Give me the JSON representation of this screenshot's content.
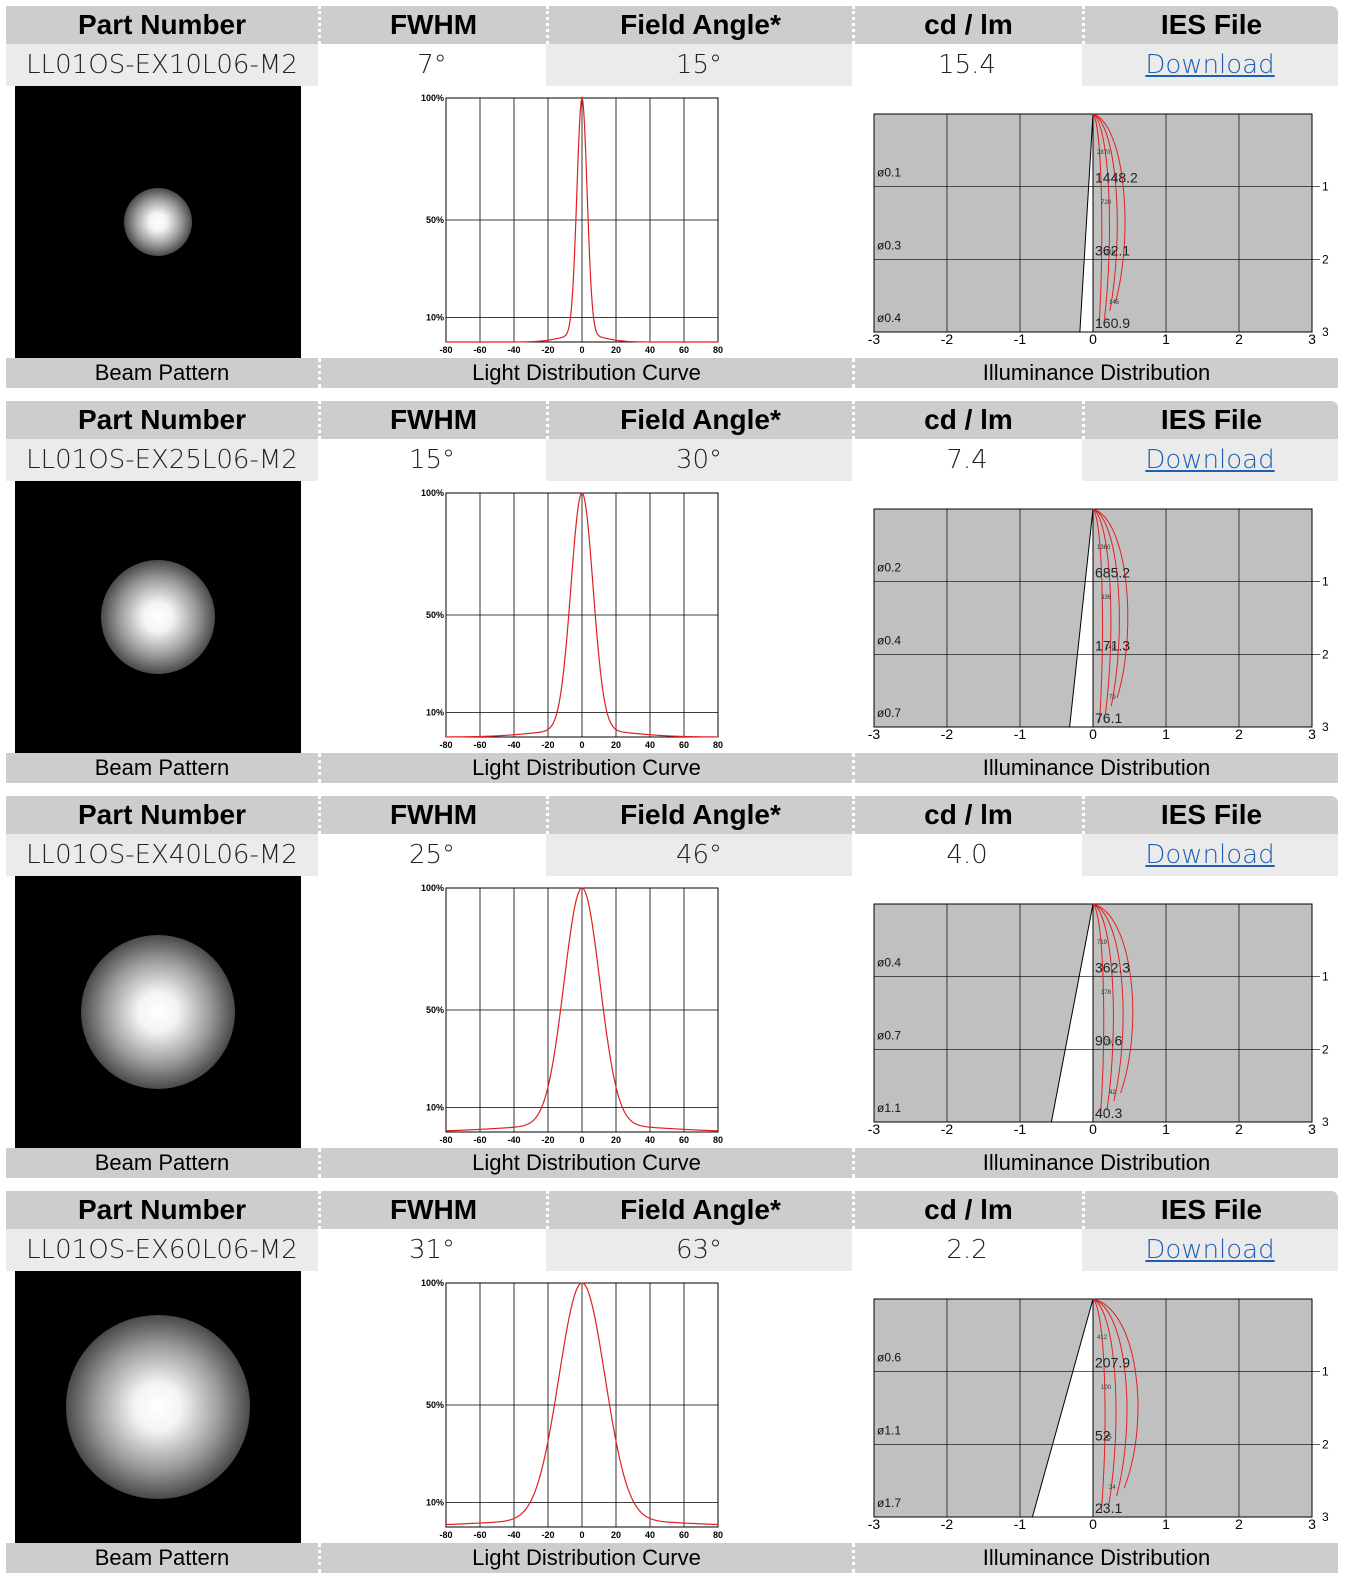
{
  "headers": {
    "part_number": "Part Number",
    "fwhm": "FWHM",
    "field_angle": "Field Angle*",
    "cd_lm": "cd / lm",
    "ies_file": "IES File"
  },
  "footers": {
    "beam": "Beam Pattern",
    "ldc": "Light Distribution Curve",
    "illum": "Illuminance Distribution"
  },
  "colors": {
    "curve": "#e02020",
    "header_bg": "#cdcdcd",
    "link": "#1f5fb3",
    "illum_bg": "#c0c0c0"
  },
  "ldc_axis": {
    "x_ticks": [
      "-80",
      "-60",
      "-40",
      "-20",
      "0",
      "20",
      "40",
      "60",
      "80"
    ],
    "y_ticks": [
      "100%",
      "50%",
      "10%"
    ]
  },
  "illum_axis": {
    "x_ticks": [
      "-3",
      "-2",
      "-1",
      "0",
      "1",
      "2",
      "3"
    ],
    "y_ticks": [
      "1",
      "2",
      "3"
    ]
  },
  "products": [
    {
      "part_number": "LL01OS-EX10L06-M2",
      "fwhm": "7°",
      "field_angle": "15°",
      "cd_lm": "15.4",
      "ies_label": "Download",
      "beam_spread": 0.12,
      "ldc_sigma": 3,
      "diam": [
        "ø0.1",
        "ø0.3",
        "ø0.4"
      ],
      "lux": [
        "1448.2",
        "362.1",
        "160.9"
      ],
      "contour_small": [
        "2870",
        "720",
        "328",
        "145"
      ],
      "cone_x": 0.18
    },
    {
      "part_number": "LL01OS-EX25L06-M2",
      "fwhm": "15°",
      "field_angle": "30°",
      "cd_lm": "7.4",
      "ies_label": "Download",
      "beam_spread": 0.2,
      "ldc_sigma": 6.5,
      "diam": [
        "ø0.2",
        "ø0.4",
        "ø0.7"
      ],
      "lux": [
        "685.2",
        "171.3",
        "76.1"
      ],
      "contour_small": [
        "1360",
        "336",
        "149",
        "79"
      ],
      "cone_x": 0.32
    },
    {
      "part_number": "LL01OS-EX40L06-M2",
      "fwhm": "25°",
      "field_angle": "46°",
      "cd_lm": "4.0",
      "ies_label": "Download",
      "beam_spread": 0.27,
      "ldc_sigma": 10.5,
      "diam": [
        "ø0.4",
        "ø0.7",
        "ø1.1"
      ],
      "lux": [
        "362.3",
        "90.6",
        "40.3"
      ],
      "contour_small": [
        "719",
        "178",
        "79",
        "42"
      ],
      "cone_x": 0.57
    },
    {
      "part_number": "LL01OS-EX60L06-M2",
      "fwhm": "31°",
      "field_angle": "63°",
      "cd_lm": "2.2",
      "ies_label": "Download",
      "beam_spread": 0.32,
      "ldc_sigma": 13.5,
      "diam": [
        "ø0.6",
        "ø1.1",
        "ø1.7"
      ],
      "lux": [
        "207.9",
        "52",
        "23.1"
      ],
      "contour_small": [
        "412",
        "100",
        "45",
        "24"
      ],
      "cone_x": 0.83
    }
  ]
}
